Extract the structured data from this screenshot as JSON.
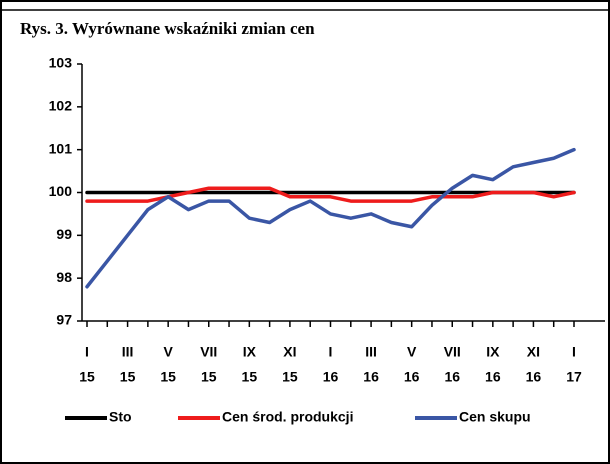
{
  "chart_data": {
    "type": "line",
    "title": "Rys. 3. Wyrównane wskaźniki zmian cen",
    "categories": [
      [
        "I",
        "15"
      ],
      null,
      [
        "III",
        "15"
      ],
      null,
      [
        "V",
        "15"
      ],
      null,
      [
        "VII",
        "15"
      ],
      null,
      [
        "IX",
        "15"
      ],
      null,
      [
        "XI",
        "15"
      ],
      null,
      [
        "I",
        "16"
      ],
      null,
      [
        "III",
        "16"
      ],
      null,
      [
        "V",
        "16"
      ],
      null,
      [
        "VII",
        "16"
      ],
      null,
      [
        "IX",
        "16"
      ],
      null,
      [
        "XI",
        "16"
      ],
      null,
      [
        "I",
        "17"
      ]
    ],
    "series": [
      {
        "name": "Sto",
        "color": "#000000",
        "values": [
          100,
          100,
          100,
          100,
          100,
          100,
          100,
          100,
          100,
          100,
          100,
          100,
          100,
          100,
          100,
          100,
          100,
          100,
          100,
          100,
          100,
          100,
          100,
          100,
          100
        ]
      },
      {
        "name": "Cen środ. produkcji",
        "color": "#ee1c1c",
        "values": [
          99.8,
          99.8,
          99.8,
          99.8,
          99.9,
          100,
          100.1,
          100.1,
          100.1,
          100.1,
          99.9,
          99.9,
          99.9,
          99.8,
          99.8,
          99.8,
          99.8,
          99.9,
          99.9,
          99.9,
          100,
          100,
          100,
          99.9,
          100
        ]
      },
      {
        "name": "Cen skupu",
        "color": "#3a56a5",
        "values": [
          97.8,
          98.4,
          99.0,
          99.6,
          99.9,
          99.6,
          99.8,
          99.8,
          99.4,
          99.3,
          99.6,
          99.8,
          99.5,
          99.4,
          99.5,
          99.3,
          99.2,
          99.7,
          100.1,
          100.4,
          100.3,
          100.6,
          100.7,
          100.8,
          101.0
        ]
      }
    ],
    "ylim": [
      97,
      103
    ],
    "yticks": [
      97,
      98,
      99,
      100,
      101,
      102,
      103
    ],
    "grid": false,
    "legend": "bottom"
  }
}
